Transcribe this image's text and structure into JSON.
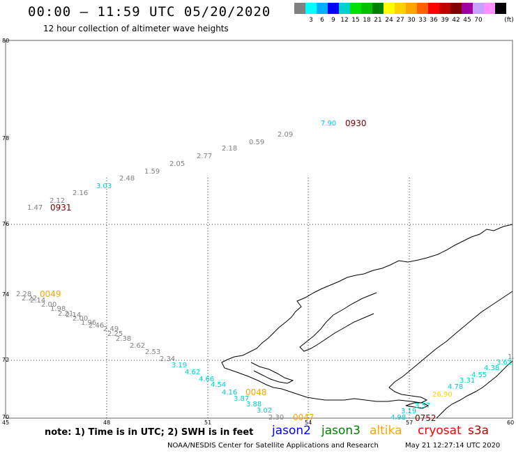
{
  "header": {
    "title": "00:00 – 11:59 UTC 05/20/2020",
    "subtitle": "12 hour collection of altimeter wave heights"
  },
  "legend": {
    "colors": [
      "#808080",
      "#00ffff",
      "#00b0ff",
      "#0000ff",
      "#00d0d0",
      "#00e000",
      "#00c000",
      "#008000",
      "#ffff00",
      "#ffd000",
      "#ffa500",
      "#ff6000",
      "#ff0000",
      "#c00000",
      "#800000",
      "#a000a0",
      "#c8a0ff",
      "#ff90ff",
      "#000000"
    ],
    "labels": [
      "3",
      "6",
      "9",
      "12",
      "15",
      "18",
      "21",
      "24",
      "27",
      "30",
      "33",
      "36",
      "39",
      "42",
      "45",
      "70"
    ],
    "unit": "(ft)"
  },
  "axes": {
    "lat_labels": [
      "80",
      "78",
      "76",
      "74",
      "72",
      "70"
    ],
    "lon_labels": [
      "45",
      "48",
      "51",
      "54",
      "57",
      "60"
    ]
  },
  "pass_labels": [
    {
      "text": "0930",
      "color": "#800000"
    },
    {
      "text": "0931",
      "color": "#800000"
    },
    {
      "text": "0049",
      "color": "#ffa500"
    },
    {
      "text": "0048",
      "color": "#ffa500"
    },
    {
      "text": "0047",
      "color": "#ffa500"
    },
    {
      "text": "0752",
      "color": "#800000"
    }
  ],
  "wave_values": [
    {
      "text": "7.90",
      "color": "#00bfff"
    },
    {
      "text": "2.09",
      "color": "#808080"
    },
    {
      "text": "0.59",
      "color": "#808080"
    },
    {
      "text": "2.18",
      "color": "#808080"
    },
    {
      "text": "2.77",
      "color": "#808080"
    },
    {
      "text": "2.05",
      "color": "#808080"
    },
    {
      "text": "1.59",
      "color": "#808080"
    },
    {
      "text": "2.48",
      "color": "#808080"
    },
    {
      "text": "3.03",
      "color": "#00cccc"
    },
    {
      "text": "2.16",
      "color": "#808080"
    },
    {
      "text": "2.12",
      "color": "#808080"
    },
    {
      "text": "1.47",
      "color": "#808080"
    },
    {
      "text": "2.28",
      "color": "#808080"
    },
    {
      "text": "2.22",
      "color": "#808080"
    },
    {
      "text": "2.14",
      "color": "#808080"
    },
    {
      "text": "2.00",
      "color": "#808080"
    },
    {
      "text": "1.98",
      "color": "#808080"
    },
    {
      "text": "2.21",
      "color": "#808080"
    },
    {
      "text": "2.14",
      "color": "#808080"
    },
    {
      "text": "2.00",
      "color": "#808080"
    },
    {
      "text": "1.96",
      "color": "#808080"
    },
    {
      "text": "2.46",
      "color": "#808080"
    },
    {
      "text": "2.49",
      "color": "#808080"
    },
    {
      "text": "2.25",
      "color": "#808080"
    },
    {
      "text": "2.38",
      "color": "#808080"
    },
    {
      "text": "2.62",
      "color": "#808080"
    },
    {
      "text": "2.53",
      "color": "#808080"
    },
    {
      "text": "2.34",
      "color": "#808080"
    },
    {
      "text": "3.19",
      "color": "#00cccc"
    },
    {
      "text": "4.62",
      "color": "#00cccc"
    },
    {
      "text": "4.66",
      "color": "#00cccc"
    },
    {
      "text": "4.54",
      "color": "#00cccc"
    },
    {
      "text": "4.16",
      "color": "#00cccc"
    },
    {
      "text": "3.87",
      "color": "#00cccc"
    },
    {
      "text": "3.88",
      "color": "#00cccc"
    },
    {
      "text": "3.02",
      "color": "#00cccc"
    },
    {
      "text": "2.30",
      "color": "#808080"
    },
    {
      "text": "4.98",
      "color": "#00cccc"
    },
    {
      "text": "3.19",
      "color": "#00cccc"
    },
    {
      "text": "3.57",
      "color": "#00cccc"
    },
    {
      "text": "26.90",
      "color": "#ffd000"
    },
    {
      "text": "4.78",
      "color": "#00cccc"
    },
    {
      "text": "3.31",
      "color": "#00cccc"
    },
    {
      "text": "4.55",
      "color": "#00cccc"
    },
    {
      "text": "4.38",
      "color": "#00cccc"
    },
    {
      "text": "3.61",
      "color": "#00cccc"
    },
    {
      "text": "1.",
      "color": "#808080"
    }
  ],
  "footer": {
    "note": "note: 1) Time is in UTC; 2) SWH is in feet",
    "satellites": [
      {
        "name": "jason2",
        "color": "#0000ff"
      },
      {
        "name": "jason3",
        "color": "#008000"
      },
      {
        "name": "altika",
        "color": "#ffa500"
      },
      {
        "name": "cryosat",
        "color": "#ff0000"
      },
      {
        "name": "s3a",
        "color": "#c00000"
      }
    ],
    "credit": "NOAA/NESDIS Center for Satellite Applications and Research",
    "timestamp": "May 21 12:27:14 UTC 2020"
  }
}
